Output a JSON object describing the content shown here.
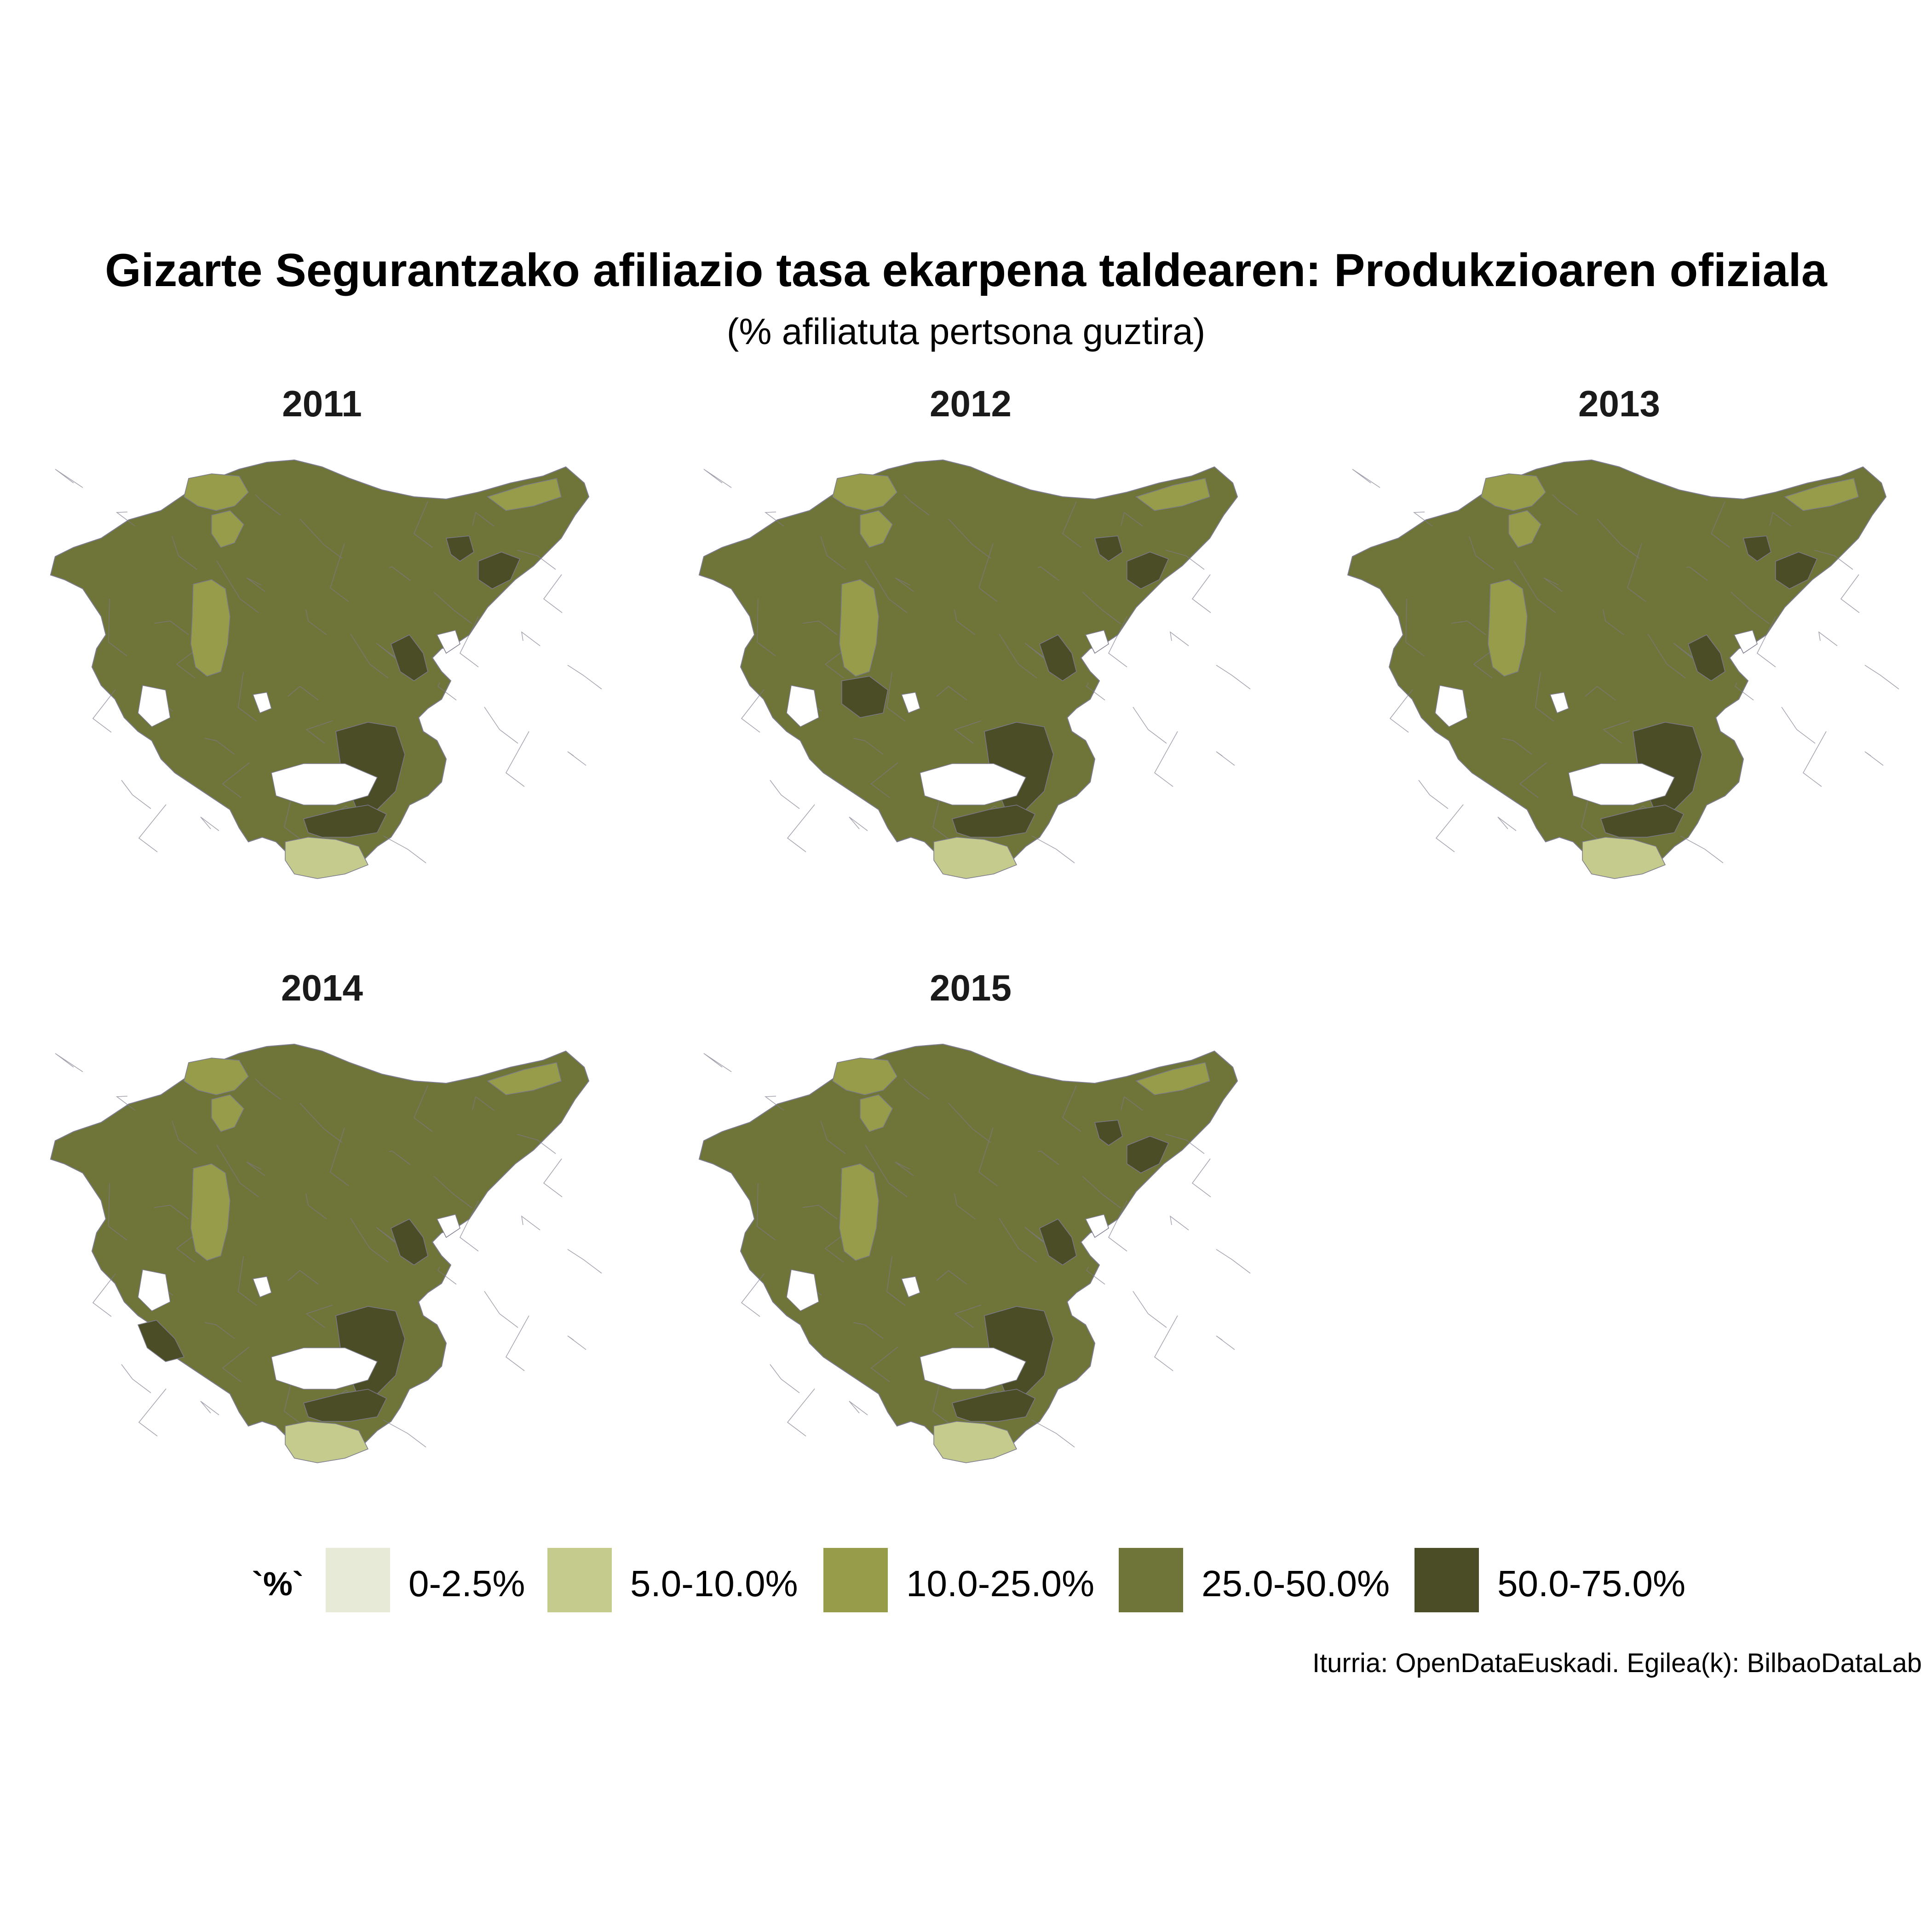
{
  "title": "Gizarte Segurantzako afiliazio tasa ekarpena taldearen: Produkzioaren ofiziala",
  "subtitle": "(% afiliatuta pertsona guztira)",
  "caption": "Iturria: OpenDataEuskadi. Egilea(k): BilbaoDataLab",
  "colors": {
    "border": "#7a7a8c",
    "base": "#6f7538",
    "light": "#c4cb8d",
    "mid": "#969c4a",
    "dark": "#4a4d26",
    "lightest": "#e8ead8"
  },
  "legend": {
    "title": "`%`",
    "items": [
      {
        "label": "0-2.5%",
        "color": "#e8ead8"
      },
      {
        "label": "5.0-10.0%",
        "color": "#c4cb8d"
      },
      {
        "label": "10.0-25.0%",
        "color": "#969c4a"
      },
      {
        "label": "25.0-50.0%",
        "color": "#6f7538"
      },
      {
        "label": "50.0-75.0%",
        "color": "#4a4d26"
      }
    ]
  },
  "panels": [
    {
      "year": "2011",
      "dark_areas": [
        "gipuzkoa-east",
        "goierri",
        "ayala-east",
        "alava-south"
      ],
      "light_areas": [
        "bilbao",
        "rioja-alavesa"
      ]
    },
    {
      "year": "2012",
      "dark_areas": [
        "gipuzkoa-east",
        "goierri",
        "ayala-west",
        "ayala-east",
        "alava-south"
      ],
      "light_areas": [
        "bilbao",
        "rioja-alavesa"
      ]
    },
    {
      "year": "2013",
      "dark_areas": [
        "gipuzkoa-east",
        "goierri",
        "ayala-east",
        "alava-south"
      ],
      "light_areas": [
        "bilbao",
        "rioja-alavesa"
      ]
    },
    {
      "year": "2014",
      "dark_areas": [
        "ayala-east",
        "alava-south",
        "encartaciones",
        "goierri"
      ],
      "light_areas": [
        "bilbao",
        "rioja-alavesa"
      ]
    },
    {
      "year": "2015",
      "dark_areas": [
        "gipuzkoa-east",
        "goierri",
        "ayala-east",
        "alava-south"
      ],
      "light_areas": [
        "bilbao",
        "rioja-alavesa"
      ]
    }
  ]
}
